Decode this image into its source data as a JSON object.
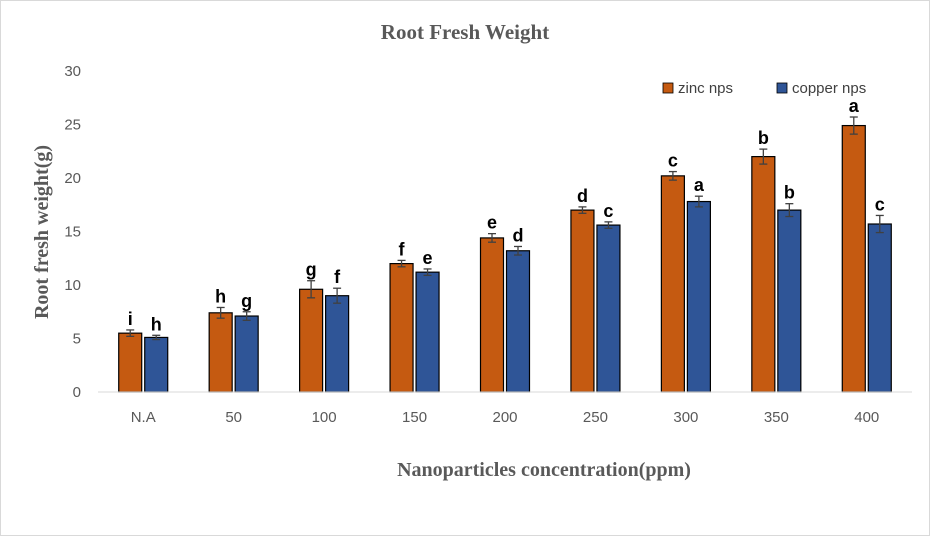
{
  "chart_data": {
    "type": "bar",
    "title": "Root Fresh Weight",
    "xlabel": "Nanoparticles concentration(ppm)",
    "ylabel": "Root fresh weight(g)",
    "ylim": [
      0,
      30
    ],
    "yticks": [
      0,
      5,
      10,
      15,
      20,
      25,
      30
    ],
    "grid": false,
    "legend_position": "top-right",
    "categories": [
      "N.A",
      "50",
      "100",
      "150",
      "200",
      "250",
      "300",
      "350",
      "400"
    ],
    "series": [
      {
        "name": "zinc nps",
        "color": "#c55a11",
        "values": [
          5.5,
          7.4,
          9.6,
          12.0,
          14.4,
          17.0,
          20.2,
          22.0,
          24.9
        ],
        "errors": [
          0.3,
          0.5,
          0.8,
          0.3,
          0.4,
          0.3,
          0.4,
          0.7,
          0.8
        ],
        "labels": [
          "i",
          "h",
          "g",
          "f",
          "e",
          "d",
          "c",
          "b",
          "a"
        ]
      },
      {
        "name": "copper nps",
        "color": "#2f5597",
        "values": [
          5.1,
          7.1,
          9.0,
          11.2,
          13.2,
          15.6,
          17.8,
          17.0,
          15.7
        ],
        "errors": [
          0.2,
          0.4,
          0.7,
          0.3,
          0.4,
          0.3,
          0.5,
          0.6,
          0.8
        ],
        "labels": [
          "h",
          "g",
          "f",
          "e",
          "d",
          "c",
          "a",
          "b",
          "c"
        ]
      }
    ]
  }
}
